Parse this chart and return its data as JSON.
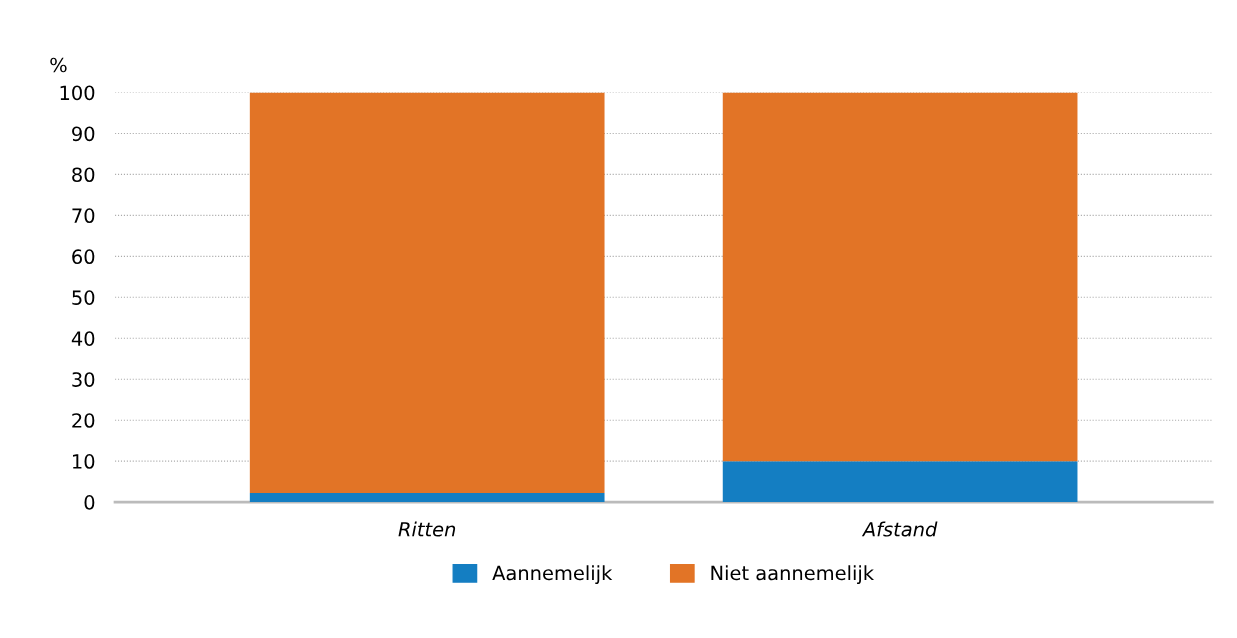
{
  "chart_data": {
    "type": "bar",
    "stacked": true,
    "ylabel": "%",
    "categories": [
      "Ritten",
      "Afstand"
    ],
    "series": [
      {
        "name": "Aannemelijk",
        "color": "#147ec2",
        "values": [
          2.2,
          10
        ]
      },
      {
        "name": "Niet aannemelijk",
        "color": "#e27426",
        "values": [
          97.8,
          90
        ]
      }
    ],
    "ylim": [
      0,
      100
    ],
    "yticks": [
      0,
      10,
      20,
      30,
      40,
      50,
      60,
      70,
      80,
      90,
      100
    ],
    "grid": "y",
    "legend": "bottom"
  }
}
